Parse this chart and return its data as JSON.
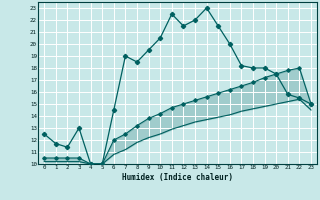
{
  "xlabel": "Humidex (Indice chaleur)",
  "bg_color": "#c8e8e8",
  "grid_color": "#ffffff",
  "line_color": "#006060",
  "xlim": [
    -0.5,
    23.5
  ],
  "ylim": [
    10,
    23.5
  ],
  "xticks": [
    0,
    1,
    2,
    3,
    4,
    5,
    6,
    7,
    8,
    9,
    10,
    11,
    12,
    13,
    14,
    15,
    16,
    17,
    18,
    19,
    20,
    21,
    22,
    23
  ],
  "yticks": [
    10,
    11,
    12,
    13,
    14,
    15,
    16,
    17,
    18,
    19,
    20,
    21,
    22,
    23
  ],
  "curve1_x": [
    0,
    1,
    2,
    3,
    4,
    5,
    6,
    7,
    8,
    9,
    10,
    11,
    12,
    13,
    14,
    15,
    16,
    17,
    18,
    19,
    20,
    21,
    22,
    23
  ],
  "curve1_y": [
    12.5,
    11.7,
    11.4,
    13.0,
    10.0,
    10.0,
    14.5,
    19.0,
    18.5,
    19.5,
    20.5,
    22.5,
    21.5,
    22.0,
    23.0,
    21.5,
    20.0,
    18.2,
    18.0,
    18.0,
    17.5,
    15.8,
    15.5,
    15.0
  ],
  "curve2_x": [
    0,
    1,
    2,
    3,
    4,
    5,
    6,
    7,
    8,
    9,
    10,
    11,
    12,
    13,
    14,
    15,
    16,
    17,
    18,
    19,
    20,
    21,
    22,
    23
  ],
  "curve2_y": [
    10.5,
    10.5,
    10.5,
    10.5,
    10.0,
    10.0,
    12.0,
    12.5,
    13.2,
    13.8,
    14.2,
    14.7,
    15.0,
    15.3,
    15.6,
    15.9,
    16.2,
    16.5,
    16.8,
    17.2,
    17.5,
    17.8,
    18.0,
    15.0
  ],
  "curve3_x": [
    0,
    1,
    2,
    3,
    4,
    5,
    6,
    7,
    8,
    9,
    10,
    11,
    12,
    13,
    14,
    15,
    16,
    17,
    18,
    19,
    20,
    21,
    22,
    23
  ],
  "curve3_y": [
    10.2,
    10.2,
    10.2,
    10.2,
    10.0,
    10.0,
    10.8,
    11.2,
    11.8,
    12.2,
    12.5,
    12.9,
    13.2,
    13.5,
    13.7,
    13.9,
    14.1,
    14.4,
    14.6,
    14.8,
    15.0,
    15.2,
    15.4,
    14.5
  ]
}
